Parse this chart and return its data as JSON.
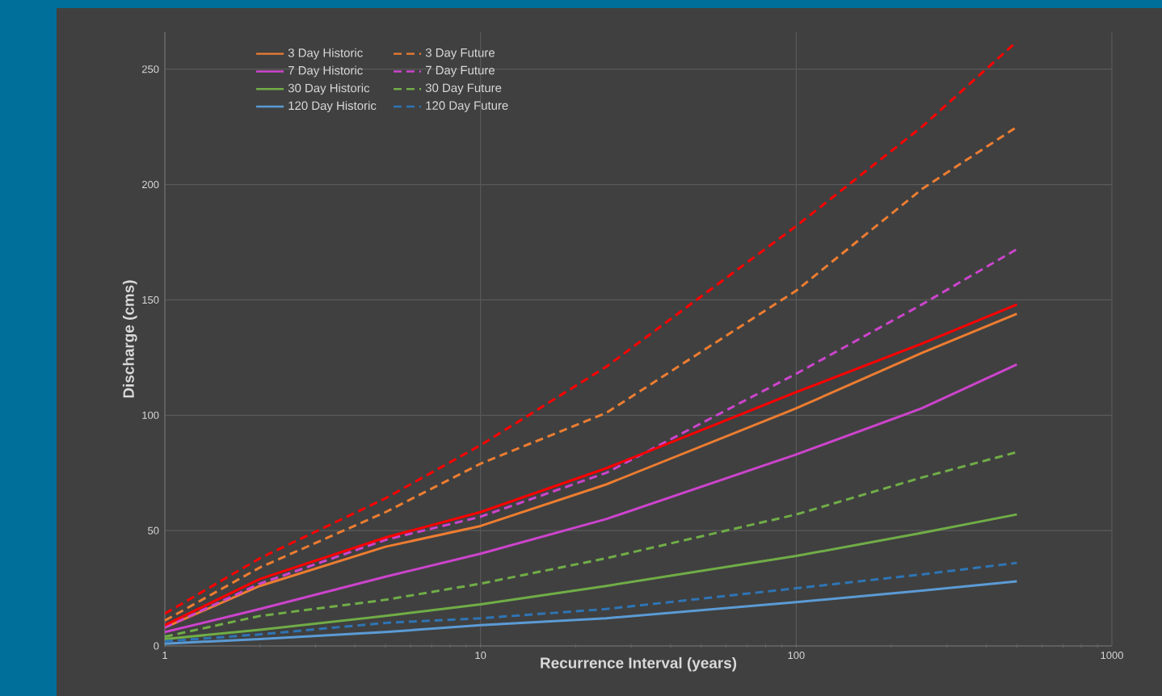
{
  "chart_data": {
    "type": "line",
    "xlabel": "Recurrence Interval (years)",
    "ylabel": "Discharge (cms)",
    "log": "x",
    "grid": true,
    "legend": "top left",
    "marker": "none",
    "x": [
      1,
      2,
      5,
      10,
      25,
      100,
      250,
      500
    ],
    "xlim": [
      1,
      1000
    ],
    "xticks": [
      1,
      10,
      100,
      1000
    ],
    "ylim": [
      0,
      266
    ],
    "yticks": [
      0,
      50,
      100,
      150,
      200,
      250
    ],
    "series": [
      {
        "name": "3 Day Historic",
        "color": "#ed7d31",
        "line_style": "solid",
        "values": [
          8,
          26,
          43,
          52,
          70,
          103,
          127,
          144
        ]
      },
      {
        "name": "3 Day Future",
        "color": "#ed7d31",
        "line_style": "dashed",
        "values": [
          11,
          34,
          58,
          79,
          101,
          154,
          198,
          225
        ]
      },
      {
        "name": "7 Day Historic",
        "color": "#cc44cc",
        "line_style": "solid",
        "values": [
          6,
          16,
          30,
          40,
          55,
          83,
          103,
          122
        ]
      },
      {
        "name": "7 Day Future",
        "color": "#cc44cc",
        "line_style": "dashed",
        "values": [
          8,
          27,
          46,
          56,
          75,
          118,
          148,
          172
        ]
      },
      {
        "name": "30 Day Historic",
        "color": "#70ad47",
        "line_style": "solid",
        "values": [
          3,
          7,
          13,
          18,
          26,
          39,
          49,
          57
        ]
      },
      {
        "name": "30 Day Future",
        "color": "#70ad47",
        "line_style": "dashed",
        "values": [
          4,
          13,
          20,
          27,
          38,
          57,
          73,
          84
        ]
      },
      {
        "name": "120 Day Historic",
        "color": "#5b9bd5",
        "line_style": "solid",
        "values": [
          1,
          3,
          6,
          9,
          12,
          19,
          24,
          28
        ]
      },
      {
        "name": "120 Day Future",
        "color": "#2e75b6",
        "line_style": "dashed",
        "values": [
          2,
          5,
          10,
          12,
          16,
          25,
          31,
          36
        ]
      },
      {
        "color": "#ff0000",
        "line_style": "solid",
        "values": [
          9,
          29,
          47,
          58,
          77,
          110,
          131,
          148
        ]
      },
      {
        "color": "#ff0000",
        "line_style": "dashed",
        "values": [
          14,
          38,
          64,
          87,
          121,
          182,
          225,
          262
        ]
      }
    ]
  }
}
